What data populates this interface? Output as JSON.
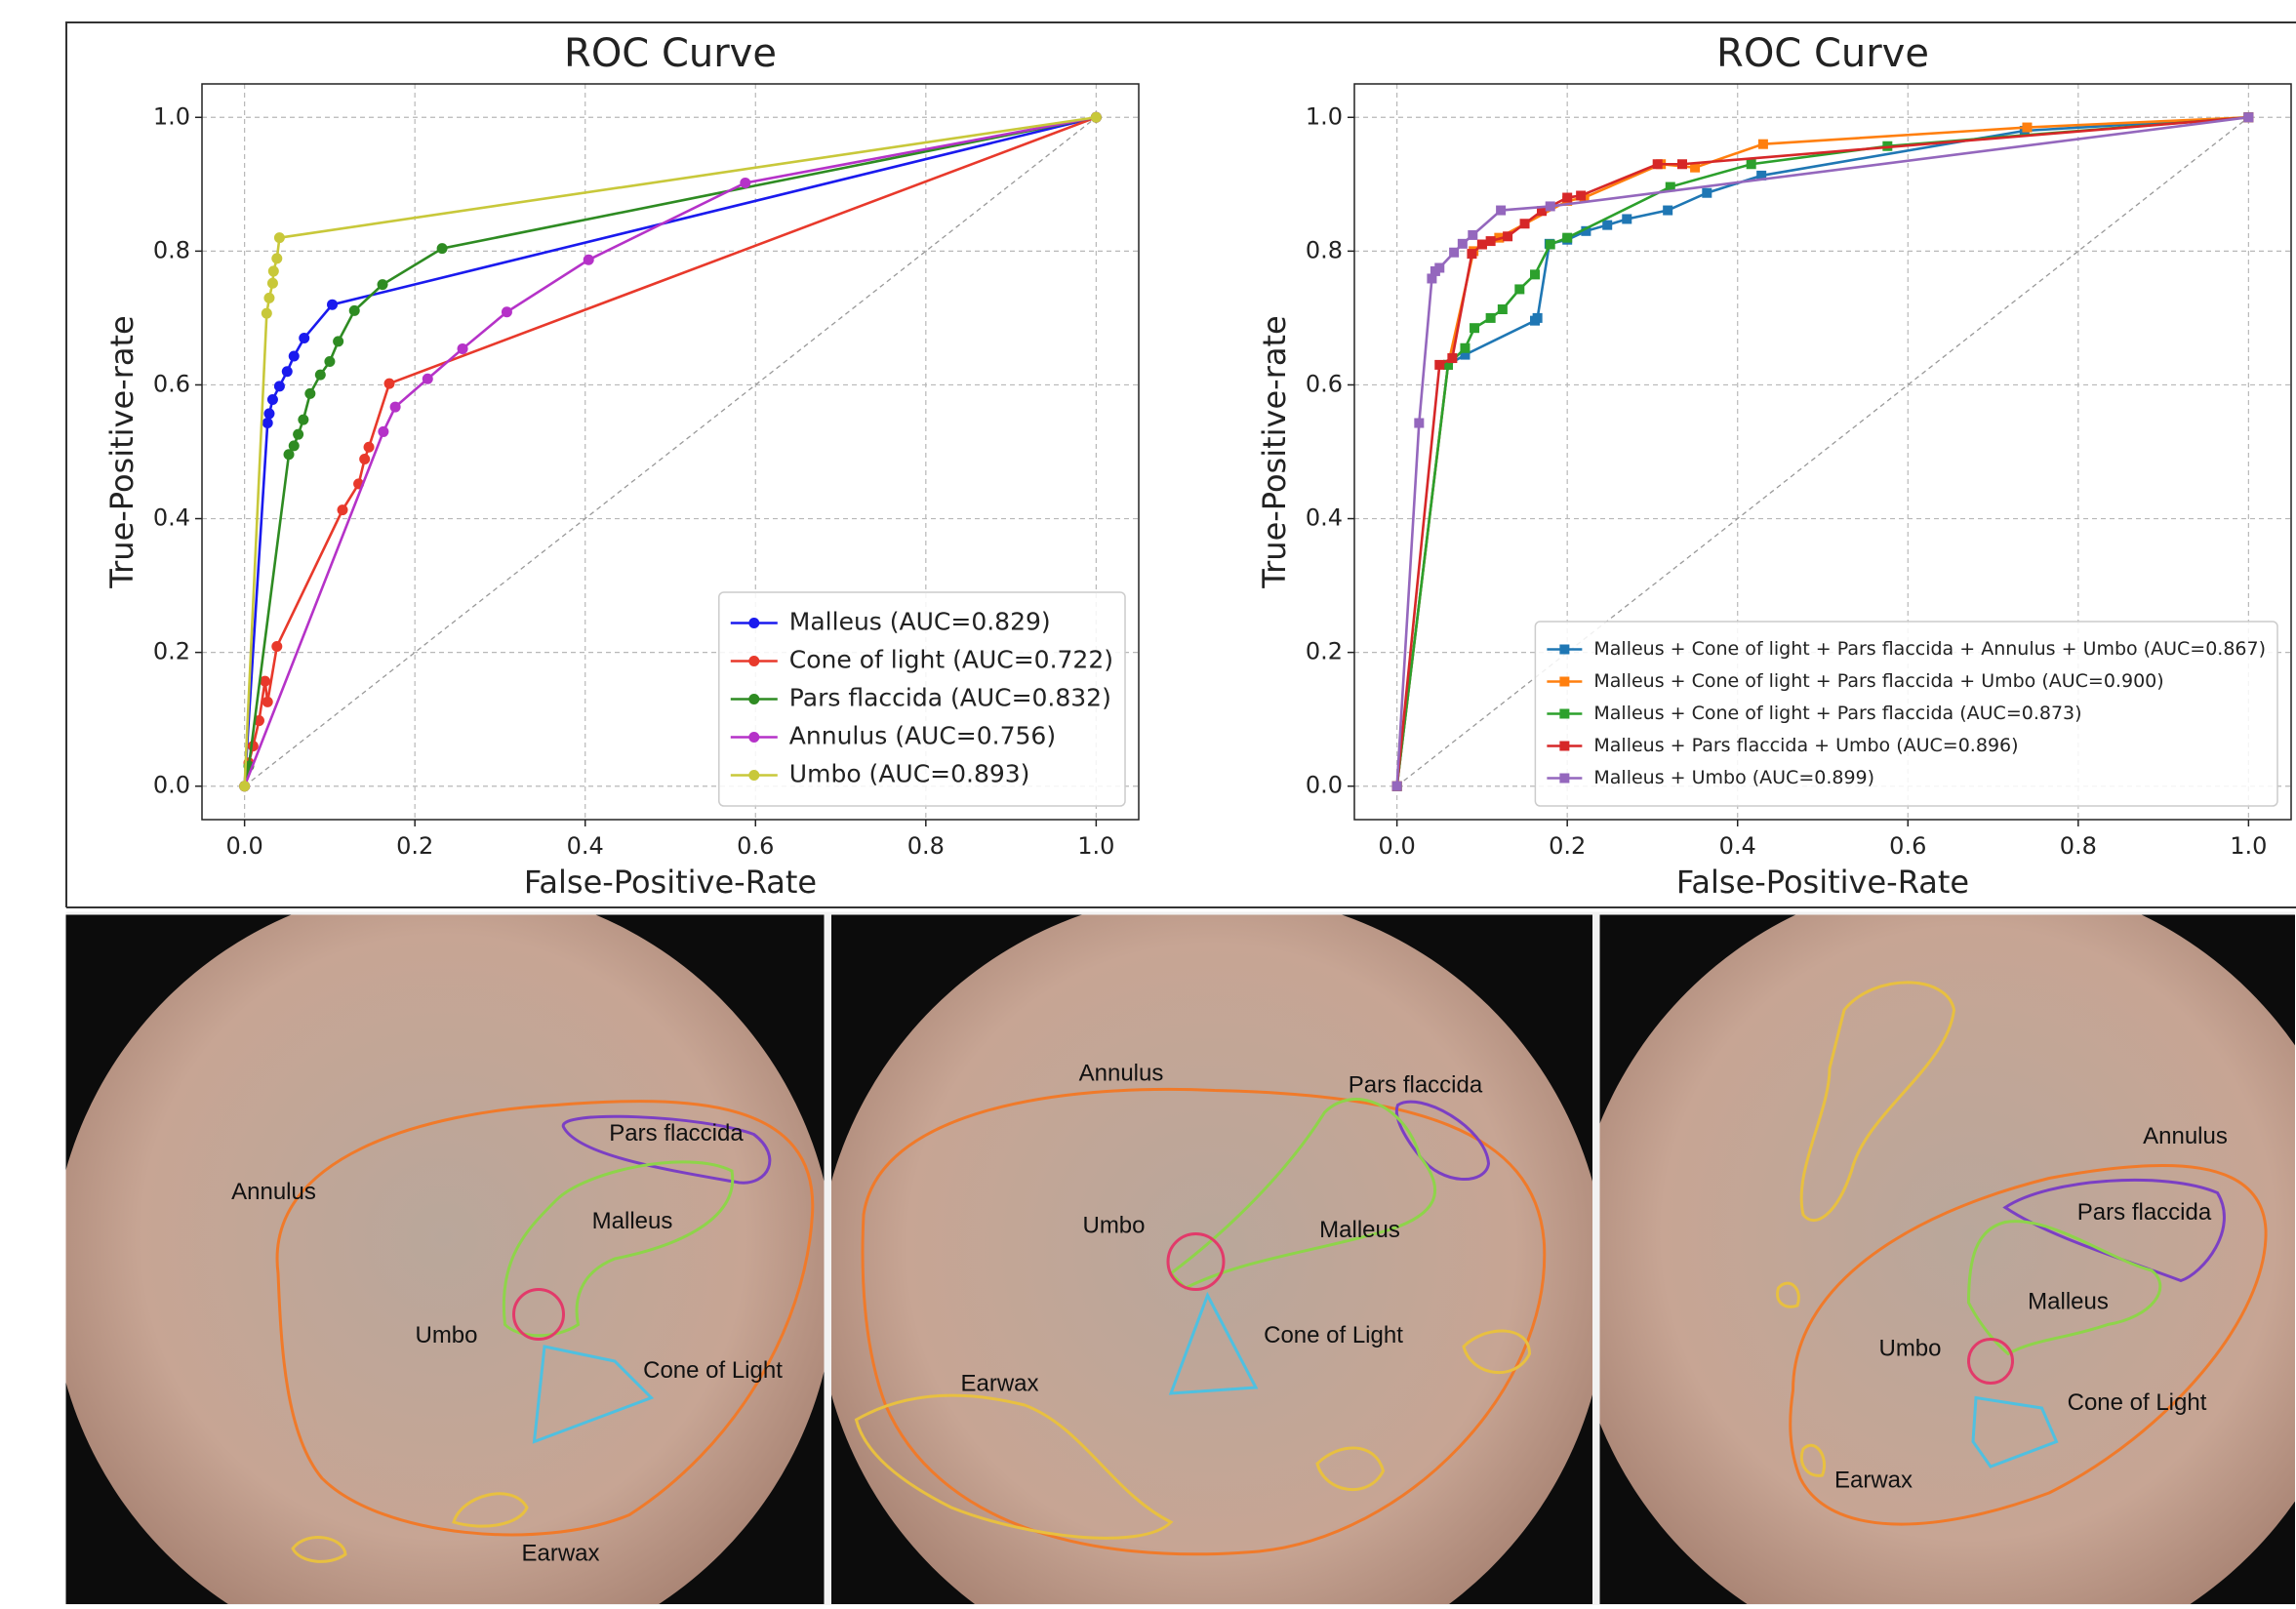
{
  "chart_data": [
    {
      "type": "line",
      "title": "ROC Curve",
      "x_label": "False-Positive-Rate",
      "y_label": "True-Positive-rate",
      "xlim": [
        -0.05,
        1.05
      ],
      "ylim": [
        -0.05,
        1.05
      ],
      "xticks": [
        {
          "value": 0,
          "label": "0.0"
        },
        0.2,
        0.4,
        0.6,
        0.8,
        {
          "value": 1,
          "label": "1.0"
        }
      ],
      "yticks": [
        {
          "value": 0,
          "label": "0.0"
        },
        0.2,
        0.4,
        0.6,
        0.8,
        {
          "value": 1,
          "label": "1.0"
        }
      ],
      "grid": true,
      "legend": "lower right",
      "marker": "circle",
      "series": [
        {
          "name": "Malleus (AUC=0.829)",
          "color": "#1a1aee",
          "x": [
            0,
            0.027,
            0.029,
            0.033,
            0.041,
            0.05,
            0.058,
            0.07,
            0.103,
            1
          ],
          "values": [
            0,
            0.543,
            0.557,
            0.578,
            0.598,
            0.62,
            0.643,
            0.67,
            0.72,
            1
          ]
        },
        {
          "name": "Cone of light (AUC=0.722)",
          "color": "#e8392b",
          "x": [
            0,
            0.005,
            0.01,
            0.017,
            0.024,
            0.027,
            0.038,
            0.115,
            0.134,
            0.141,
            0.146,
            0.17,
            1
          ],
          "values": [
            0,
            0.035,
            0.06,
            0.098,
            0.157,
            0.126,
            0.209,
            0.413,
            0.452,
            0.489,
            0.507,
            0.602,
            1
          ]
        },
        {
          "name": "Pars flaccida (AUC=0.832)",
          "color": "#2e8b22",
          "x": [
            0,
            0.005,
            0.052,
            0.058,
            0.063,
            0.069,
            0.077,
            0.089,
            0.1,
            0.11,
            0.129,
            0.162,
            0.232,
            1
          ],
          "values": [
            0,
            0.03,
            0.496,
            0.509,
            0.526,
            0.548,
            0.587,
            0.615,
            0.635,
            0.665,
            0.711,
            0.75,
            0.804,
            1
          ]
        },
        {
          "name": "Annulus (AUC=0.756)",
          "color": "#b532c8",
          "x": [
            0,
            0.163,
            0.177,
            0.215,
            0.256,
            0.308,
            0.404,
            0.588,
            1
          ],
          "values": [
            0,
            0.53,
            0.567,
            0.609,
            0.654,
            0.709,
            0.787,
            0.902,
            1
          ]
        },
        {
          "name": "Umbo (AUC=0.893)",
          "color": "#c8c83a",
          "x": [
            0,
            0.026,
            0.029,
            0.033,
            0.034,
            0.038,
            0.041,
            1
          ],
          "values": [
            0,
            0.707,
            0.73,
            0.752,
            0.77,
            0.789,
            0.82,
            1
          ]
        }
      ]
    },
    {
      "type": "line",
      "title": "ROC Curve",
      "x_label": "False-Positive-Rate",
      "y_label": "True-Positive-rate",
      "xlim": [
        -0.05,
        1.05
      ],
      "ylim": [
        -0.05,
        1.05
      ],
      "xticks": [
        {
          "value": 0,
          "label": "0.0"
        },
        0.2,
        0.4,
        0.6,
        0.8,
        {
          "value": 1,
          "label": "1.0"
        }
      ],
      "yticks": [
        {
          "value": 0,
          "label": "0.0"
        },
        0.2,
        0.4,
        0.6,
        0.8,
        {
          "value": 1,
          "label": "1.0"
        }
      ],
      "grid": true,
      "legend": "lower right",
      "marker": "square",
      "series": [
        {
          "name": "Malleus + Cone of light + Pars flaccida + Annulus + Umbo (AUC=0.867)",
          "color": "#1f77b4",
          "x": [
            0,
            0.06,
            0.08,
            0.162,
            0.165,
            0.179,
            0.2,
            0.222,
            0.247,
            0.27,
            0.318,
            0.364,
            0.428,
            0.737,
            1
          ],
          "values": [
            0,
            0.63,
            0.645,
            0.696,
            0.7,
            0.811,
            0.817,
            0.83,
            0.839,
            0.848,
            0.861,
            0.887,
            0.913,
            0.98,
            1
          ]
        },
        {
          "name": "Malleus + Cone of light + Pars flaccida + Umbo (AUC=0.900)",
          "color": "#ff7f0e",
          "x": [
            0,
            0.06,
            0.09,
            0.1,
            0.12,
            0.2,
            0.22,
            0.31,
            0.35,
            0.43,
            0.74,
            1
          ],
          "values": [
            0,
            0.63,
            0.8,
            0.81,
            0.82,
            0.875,
            0.88,
            0.93,
            0.925,
            0.96,
            0.985,
            1
          ]
        },
        {
          "name": "Malleus + Cone of light + Pars flaccida (AUC=0.873)",
          "color": "#2ca02c",
          "x": [
            0,
            0.06,
            0.08,
            0.091,
            0.11,
            0.124,
            0.144,
            0.162,
            0.18,
            0.2,
            0.321,
            0.416,
            0.576,
            1
          ],
          "values": [
            0,
            0.63,
            0.655,
            0.685,
            0.7,
            0.713,
            0.743,
            0.765,
            0.81,
            0.82,
            0.896,
            0.93,
            0.957,
            1
          ]
        },
        {
          "name": "Malleus + Pars flaccida + Umbo (AUC=0.896)",
          "color": "#d62728",
          "x": [
            0,
            0.05,
            0.065,
            0.088,
            0.1,
            0.11,
            0.13,
            0.15,
            0.17,
            0.2,
            0.216,
            0.306,
            0.335,
            1
          ],
          "values": [
            0,
            0.63,
            0.64,
            0.796,
            0.81,
            0.815,
            0.822,
            0.841,
            0.86,
            0.88,
            0.883,
            0.93,
            0.93,
            1
          ]
        },
        {
          "name": "Malleus + Umbo (AUC=0.899)",
          "color": "#9467bd",
          "x": [
            0,
            0.026,
            0.041,
            0.045,
            0.05,
            0.067,
            0.077,
            0.089,
            0.122,
            0.18,
            1
          ],
          "values": [
            0,
            0.543,
            0.759,
            0.77,
            0.775,
            0.798,
            0.811,
            0.824,
            0.861,
            0.867,
            1
          ]
        }
      ]
    }
  ],
  "images": [
    {
      "labels": [
        "Pars flaccida",
        "Annulus",
        "Malleus",
        "Umbo",
        "Cone of Light",
        "Earwax"
      ]
    },
    {
      "labels": [
        "Annulus",
        "Pars flaccida",
        "Umbo",
        "Malleus",
        "Cone of Light",
        "Earwax"
      ]
    },
    {
      "labels": [
        "Annulus",
        "Pars flaccida",
        "Malleus",
        "Umbo",
        "Cone of Light",
        "Earwax"
      ]
    }
  ]
}
